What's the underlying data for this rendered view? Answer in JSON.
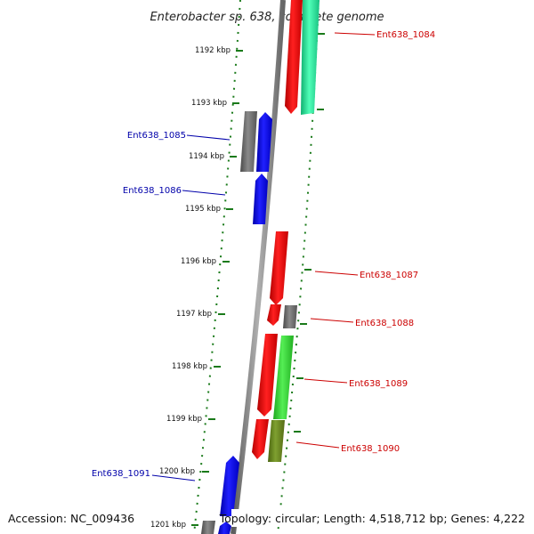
{
  "title": "Enterobacter sp. 638, complete genome",
  "footer": {
    "accession": "Accession: NC_009436",
    "topology": "Topology: circular; Length: 4,518,712 bp; Genes: 4,222"
  },
  "colors": {
    "backbone": "#8c8c8c",
    "tick_mark": "#1a7a1a",
    "label_forward": "#cc0000",
    "label_reverse": "#0000aa",
    "gene_red": "#ff0000",
    "gene_blue": "#0000ff",
    "gene_gray": "#707070",
    "gene_green": "#33dd33",
    "gene_mint": "#22e89a",
    "gene_olive": "#6b8e23"
  },
  "kbp_ticks": [
    "1192 kbp",
    "1193 kbp",
    "1194 kbp",
    "1195 kbp",
    "1196 kbp",
    "1197 kbp",
    "1198 kbp",
    "1199 kbp",
    "1200 kbp",
    "1201 kbp"
  ],
  "gene_labels": [
    {
      "id": "g1084",
      "text": "Ent638_1084",
      "strand": "forward"
    },
    {
      "id": "g1085",
      "text": "Ent638_1085",
      "strand": "reverse"
    },
    {
      "id": "g1086",
      "text": "Ent638_1086",
      "strand": "reverse"
    },
    {
      "id": "g1087",
      "text": "Ent638_1087",
      "strand": "forward"
    },
    {
      "id": "g1088",
      "text": "Ent638_1088",
      "strand": "forward"
    },
    {
      "id": "g1089",
      "text": "Ent638_1089",
      "strand": "forward"
    },
    {
      "id": "g1090",
      "text": "Ent638_1090",
      "strand": "forward"
    },
    {
      "id": "g1091",
      "text": "Ent638_1091",
      "strand": "reverse"
    }
  ]
}
